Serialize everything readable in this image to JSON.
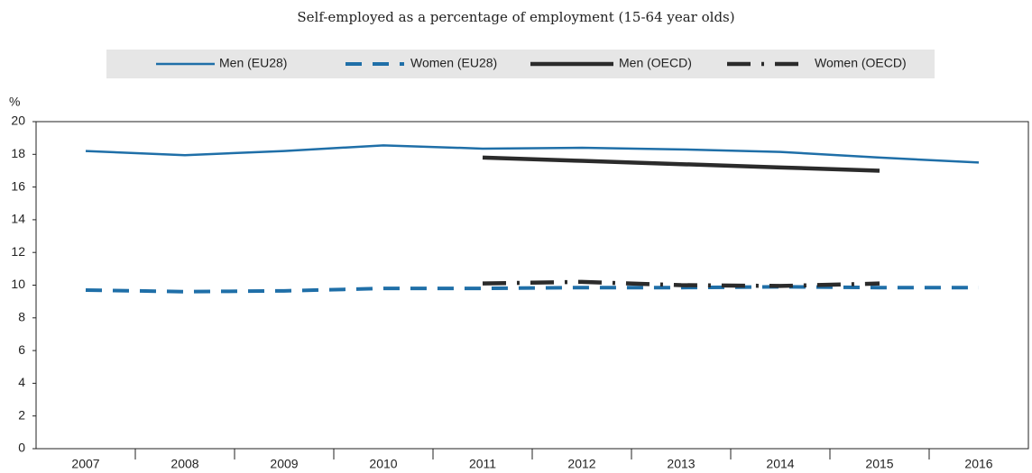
{
  "chart_data": {
    "type": "line",
    "title": "Self-employed as a percentage of employment (15-64 year olds)",
    "y_label": "%",
    "categories": [
      "2007",
      "2008",
      "2009",
      "2010",
      "2011",
      "2012",
      "2013",
      "2014",
      "2015",
      "2016"
    ],
    "series": [
      {
        "name": "Men (EU28)",
        "color": "#1f6fa8",
        "line_style": "solid",
        "values": [
          18.2,
          17.95,
          18.2,
          18.55,
          18.35,
          18.4,
          18.3,
          18.15,
          17.8,
          17.5
        ]
      },
      {
        "name": "Women (EU28)",
        "color": "#1f6fa8",
        "line_style": "dashed",
        "values": [
          9.7,
          9.6,
          9.65,
          9.8,
          9.8,
          9.85,
          9.85,
          9.9,
          9.85,
          9.85
        ]
      },
      {
        "name": "Men (OECD)",
        "color": "#2b2b2b",
        "line_style": "solid-thick",
        "values": [
          null,
          null,
          null,
          null,
          17.8,
          17.6,
          17.4,
          17.2,
          17.0,
          null
        ]
      },
      {
        "name": "Women (OECD)",
        "color": "#2b2b2b",
        "line_style": "dashdot",
        "values": [
          null,
          null,
          null,
          null,
          10.1,
          10.2,
          10.0,
          9.95,
          10.1,
          null
        ]
      }
    ],
    "ylim": [
      0,
      20
    ],
    "yticks": [
      0,
      2,
      4,
      6,
      8,
      10,
      12,
      14,
      16,
      18,
      20
    ],
    "grid": false,
    "legend": "top"
  }
}
